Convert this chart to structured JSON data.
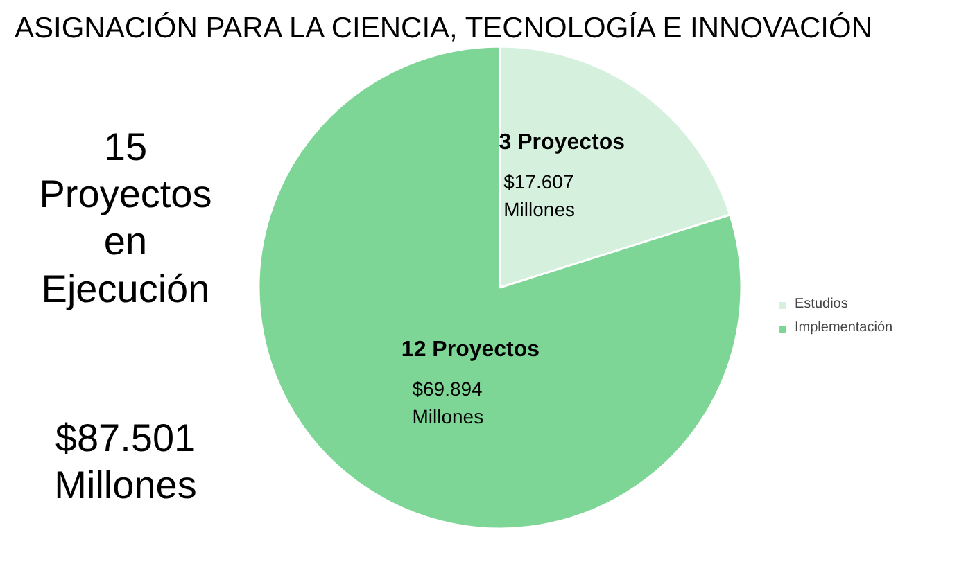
{
  "chart_data": {
    "type": "pie",
    "title": "ASIGNACIÓN PARA LA CIENCIA, TECNOLOGÍA E INNOVACIÓN",
    "categories": [
      "Estudios",
      "Implementación"
    ],
    "values": [
      17.607,
      69.894
    ],
    "colors": [
      "#d5f1de",
      "#7dd695"
    ],
    "value_labels": [
      "$17.607\nMillones",
      "$69.894\nMillones"
    ],
    "annotations": [
      "3 Proyectos",
      "12 Proyectos",
      "15\nProyectos\nen\nEjecución",
      "$87.501\nMillones"
    ],
    "legend": "right"
  }
}
